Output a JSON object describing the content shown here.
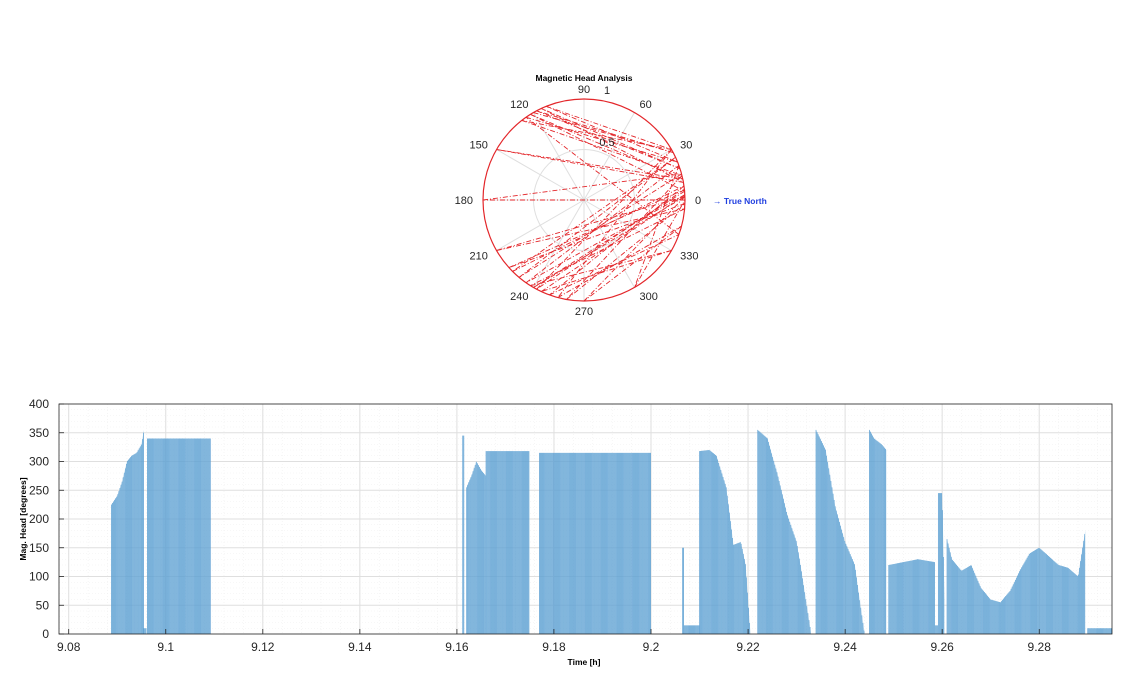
{
  "colors": {
    "polar_line": "#e3262a",
    "bar_fill": "#85b9dd",
    "bar_edge": "#4f97cf",
    "grid": "#dfdfdf",
    "minor_grid": "#efefef",
    "axis": "#262626",
    "north_label": "#1f3ee0"
  },
  "chart_data": [
    {
      "type": "polar-line",
      "title": "Magnetic Head Analysis",
      "theta_ticks": [
        "0",
        "30",
        "60",
        "90",
        "120",
        "150",
        "180",
        "210",
        "240",
        "270",
        "300",
        "330"
      ],
      "r_ticks": [
        "0.5",
        "1"
      ],
      "rlim": [
        0,
        1
      ],
      "annotation": "→ True North",
      "grid": true,
      "line_style": "dash-dot",
      "headings_deg": [
        120,
        28,
        118,
        18,
        115,
        10,
        150,
        12,
        122,
        5,
        240,
        2,
        210,
        355,
        238,
        330,
        245,
        3,
        235,
        20,
        300,
        0,
        180,
        15,
        230,
        25,
        225,
        8,
        250,
        340,
        125,
        22,
        112,
        30,
        128,
        14,
        260,
        358,
        222,
        6,
        242,
        30,
        255,
        345,
        270,
        2
      ]
    },
    {
      "type": "bar",
      "xlabel": "Time [h]",
      "ylabel": "Mag. Head [degrees]",
      "xlim": [
        9.078,
        9.295
      ],
      "ylim": [
        0,
        400
      ],
      "xticks": [
        "9.08",
        "9.1",
        "9.12",
        "9.14",
        "9.16",
        "9.18",
        "9.2",
        "9.22",
        "9.24",
        "9.26",
        "9.28"
      ],
      "yticks": [
        "0",
        "50",
        "100",
        "150",
        "200",
        "250",
        "300",
        "350",
        "400"
      ],
      "grid": true,
      "minor_grid": true,
      "segments": [
        {
          "x": [
            9.0888,
            9.0892,
            9.09,
            9.091,
            9.092,
            9.093,
            9.094,
            9.095,
            9.0955
          ],
          "y": [
            225,
            230,
            240,
            265,
            300,
            310,
            315,
            330,
            355
          ]
        },
        {
          "x": [
            9.0955,
            9.096
          ],
          "y": [
            10,
            10
          ]
        },
        {
          "x": [
            9.0962,
            9.1092
          ],
          "y": [
            340,
            340
          ]
        },
        {
          "x": [
            9.1612,
            9.1615
          ],
          "y": [
            345,
            345
          ]
        },
        {
          "x": [
            9.162,
            9.163,
            9.164,
            9.165,
            9.166
          ],
          "y": [
            255,
            275,
            300,
            285,
            275
          ]
        },
        {
          "x": [
            9.166,
            9.175
          ],
          "y": [
            318,
            318
          ]
        },
        {
          "x": [
            9.177,
            9.2
          ],
          "y": [
            315,
            315
          ]
        },
        {
          "x": [
            9.2065,
            9.2068
          ],
          "y": [
            150,
            150
          ]
        },
        {
          "x": [
            9.2068,
            9.21
          ],
          "y": [
            15,
            15
          ]
        },
        {
          "x": [
            9.21,
            9.212,
            9.2135,
            9.2155,
            9.217,
            9.2185,
            9.2195,
            9.2205
          ],
          "y": [
            318,
            320,
            310,
            255,
            155,
            160,
            120,
            0
          ]
        },
        {
          "x": [
            9.222,
            9.224,
            9.226,
            9.228,
            9.23,
            9.231,
            9.233
          ],
          "y": [
            355,
            340,
            280,
            210,
            160,
            110,
            0
          ]
        },
        {
          "x": [
            9.234,
            9.236,
            9.238,
            9.24,
            9.242,
            9.244
          ],
          "y": [
            355,
            320,
            220,
            160,
            120,
            0
          ]
        },
        {
          "x": [
            9.245,
            9.246,
            9.2475,
            9.2485
          ],
          "y": [
            355,
            340,
            330,
            320
          ]
        },
        {
          "x": [
            9.249,
            9.252,
            9.255,
            9.2585
          ],
          "y": [
            120,
            125,
            130,
            125
          ]
        },
        {
          "x": [
            9.2585,
            9.2592
          ],
          "y": [
            15,
            15
          ]
        },
        {
          "x": [
            9.2592,
            9.26,
            9.2605
          ],
          "y": [
            245,
            245,
            60
          ]
        },
        {
          "x": [
            9.261,
            9.262,
            9.264,
            9.266,
            9.268,
            9.27,
            9.272,
            9.274,
            9.276,
            9.278,
            9.28,
            9.282,
            9.284,
            9.286,
            9.288,
            9.2895
          ],
          "y": [
            165,
            130,
            110,
            120,
            80,
            60,
            55,
            75,
            110,
            140,
            150,
            135,
            120,
            115,
            100,
            180
          ]
        },
        {
          "x": [
            9.29,
            9.295
          ],
          "y": [
            10,
            10
          ]
        }
      ]
    }
  ]
}
